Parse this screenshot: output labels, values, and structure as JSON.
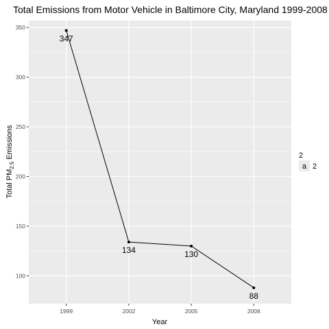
{
  "chart_data": {
    "type": "line",
    "title": "Total Emissions from Motor Vehicle in Baltimore City, Maryland 1999-2008",
    "xlabel": "Year",
    "ylabel": {
      "prefix": "Total PM",
      "subscript": "2.5",
      "suffix": " Emissions"
    },
    "x": [
      "1999",
      "2002",
      "2005",
      "2008"
    ],
    "series": [
      {
        "values": [
          347,
          134,
          130,
          88
        ]
      }
    ],
    "data_labels": [
      "347",
      "134",
      "130",
      "88"
    ],
    "y_ticks": [
      "100",
      "150",
      "200",
      "250",
      "300",
      "350"
    ],
    "ylim": [
      72,
      357
    ],
    "grid": true,
    "legend": {
      "title": "2",
      "key_glyph": "a",
      "label": "2",
      "position": "right"
    },
    "colors": {
      "panel": "#ebebeb",
      "grid": "#ffffff",
      "line": "#000000"
    }
  }
}
